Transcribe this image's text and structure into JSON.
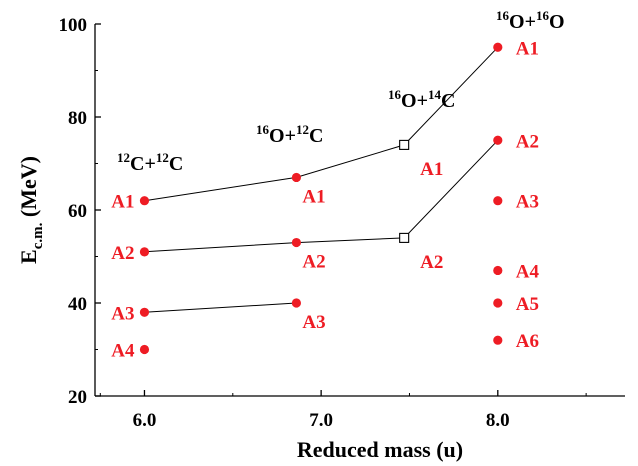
{
  "chart_data": {
    "type": "scatter",
    "xlabel": "Reduced mass  (u)",
    "ylabel_main": "E",
    "ylabel_sub": "c.m.",
    "ylabel_unit": " (MeV)",
    "xlim": [
      5.72,
      8.72
    ],
    "ylim": [
      20,
      100
    ],
    "x_ticks": [
      6.0,
      7.0,
      8.0
    ],
    "x_tick_labels": [
      "6.0",
      "7.0",
      "8.0"
    ],
    "y_ticks": [
      20,
      40,
      60,
      80,
      100
    ],
    "y_tick_labels": [
      "20",
      "40",
      "60",
      "80",
      "100"
    ],
    "grid": false,
    "colors": {
      "point": "#ee1c24",
      "label": "#ee1c24",
      "line": "#000000",
      "axis": "#000000"
    },
    "systems": [
      {
        "mass": "12",
        "a": "C",
        "mass2": "12",
        "b": "C"
      },
      {
        "mass": "16",
        "a": "O",
        "mass2": "12",
        "b": "C"
      },
      {
        "mass": "16",
        "a": "O",
        "mass2": "14",
        "b": "C"
      },
      {
        "mass": "16",
        "a": "O",
        "mass2": "16",
        "b": "O"
      }
    ],
    "points": [
      {
        "x": 6.0,
        "y": 62,
        "label": "A1",
        "marker": "dot"
      },
      {
        "x": 6.0,
        "y": 51,
        "label": "A2",
        "marker": "dot"
      },
      {
        "x": 6.0,
        "y": 38,
        "label": "A3",
        "marker": "dot"
      },
      {
        "x": 6.0,
        "y": 30,
        "label": "A4",
        "marker": "dot"
      },
      {
        "x": 6.86,
        "y": 67,
        "label": "A1",
        "marker": "dot"
      },
      {
        "x": 6.86,
        "y": 53,
        "label": "A2",
        "marker": "dot"
      },
      {
        "x": 6.86,
        "y": 40,
        "label": "A3",
        "marker": "dot"
      },
      {
        "x": 7.47,
        "y": 74,
        "label": "A1",
        "marker": "square"
      },
      {
        "x": 7.47,
        "y": 54,
        "label": "A2",
        "marker": "square"
      },
      {
        "x": 8.0,
        "y": 95,
        "label": "A1",
        "marker": "dot"
      },
      {
        "x": 8.0,
        "y": 75,
        "label": "A2",
        "marker": "dot"
      },
      {
        "x": 8.0,
        "y": 62,
        "label": "A3",
        "marker": "dot"
      },
      {
        "x": 8.0,
        "y": 47,
        "label": "A4",
        "marker": "dot"
      },
      {
        "x": 8.0,
        "y": 40,
        "label": "A5",
        "marker": "dot"
      },
      {
        "x": 8.0,
        "y": 32,
        "label": "A6",
        "marker": "dot"
      }
    ],
    "lines": [
      {
        "name": "A1",
        "x": [
          6.0,
          6.86,
          7.47,
          8.0
        ],
        "y": [
          62,
          67,
          74,
          95
        ]
      },
      {
        "name": "A2",
        "x": [
          6.0,
          6.86,
          7.47,
          8.0
        ],
        "y": [
          51,
          53,
          54,
          75
        ]
      },
      {
        "name": "A3",
        "x": [
          6.0,
          6.86
        ],
        "y": [
          38,
          40
        ]
      }
    ]
  }
}
